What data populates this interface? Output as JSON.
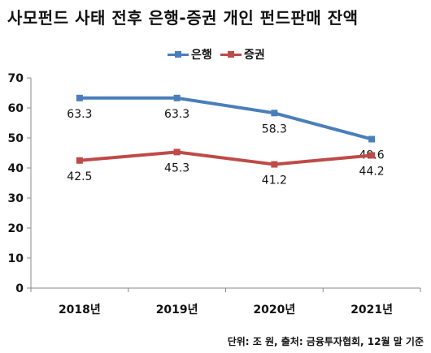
{
  "title": "사모펀드 사태 전후 은행-증권 개인 펀드판매 잔액",
  "source_note": "단위: 조 원, 출처: 금융투자협회, 12월 말 기준",
  "colors": {
    "bank": "#4a7ebb",
    "securities": "#be4b48",
    "axis": "#888888"
  },
  "chart_data": {
    "type": "line",
    "title": "사모펀드 사태 전후 은행-증권 개인 펀드판매 잔액",
    "categories": [
      "2018년",
      "2019년",
      "2020년",
      "2021년"
    ],
    "series": [
      {
        "name": "은행",
        "values": [
          63.3,
          63.3,
          58.3,
          49.6
        ]
      },
      {
        "name": "증권",
        "values": [
          42.5,
          45.3,
          41.2,
          44.2
        ]
      }
    ],
    "data_labels": [
      [
        "63.3",
        "63.3",
        "58.3",
        "49.6"
      ],
      [
        "42.5",
        "45.3",
        "41.2",
        "44.2"
      ]
    ],
    "ylim": [
      0,
      70
    ],
    "yticks": [
      "0",
      "10",
      "20",
      "30",
      "40",
      "50",
      "60",
      "70"
    ],
    "grid": false,
    "legend_position": "top-center"
  }
}
